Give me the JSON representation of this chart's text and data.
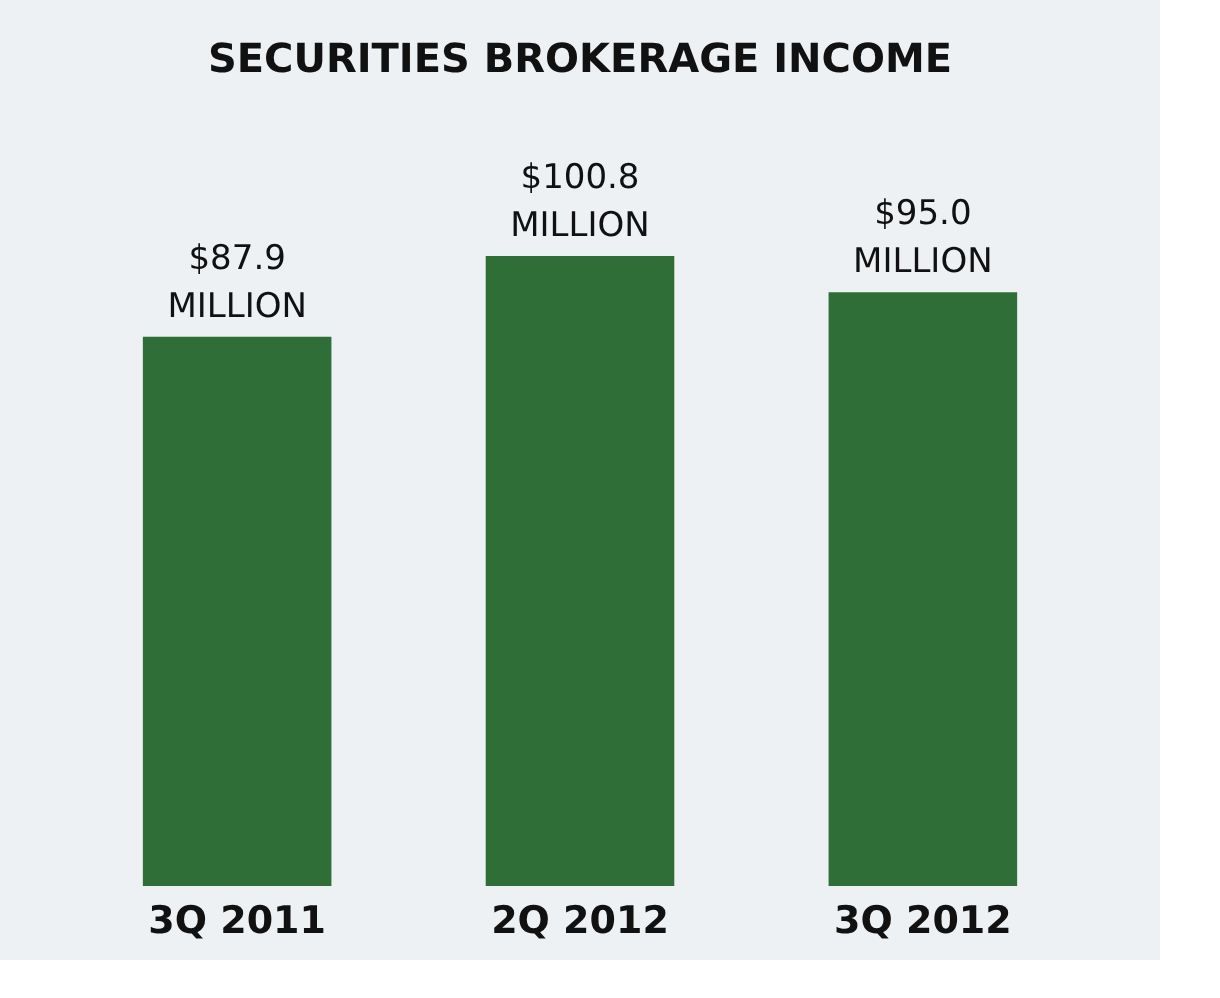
{
  "chart_data": {
    "type": "bar",
    "title": "SECURITIES BROKERAGE INCOME",
    "categories": [
      "3Q 2011",
      "2Q 2012",
      "3Q 2012"
    ],
    "values": [
      87.9,
      100.8,
      95.0
    ],
    "value_labels": [
      "$87.9\nMILLION",
      "$100.8\nMILLION",
      "$95.0\nMILLION"
    ],
    "color": "#2f6e37",
    "grid": false
  }
}
